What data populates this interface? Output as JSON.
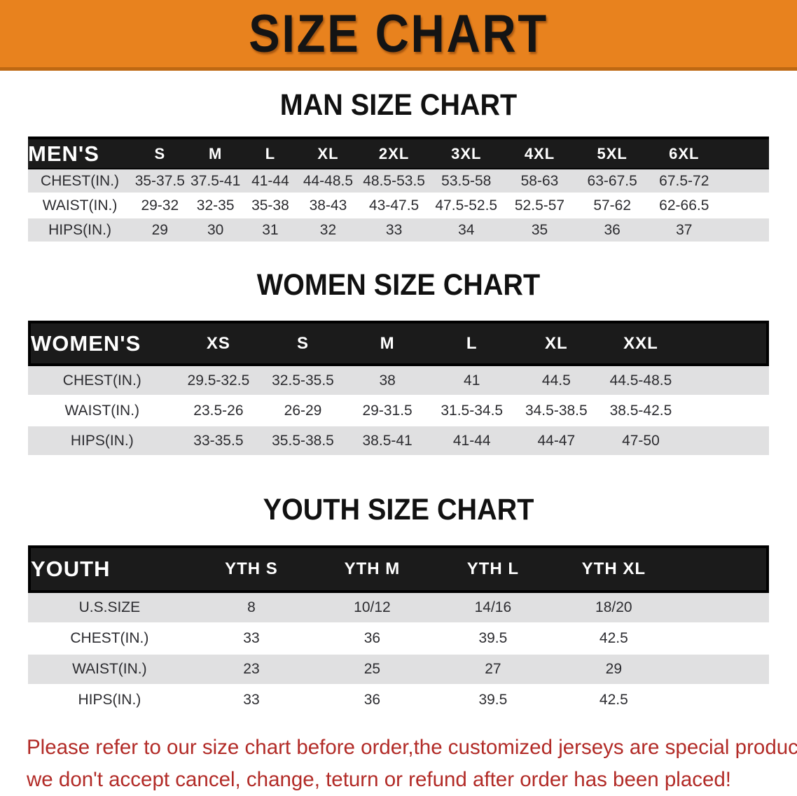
{
  "banner": {
    "title": "SIZE CHART",
    "bg_color": "#E8821E",
    "border_color": "#BE6812",
    "text_color": "#141414"
  },
  "sections": [
    {
      "heading": "MAN SIZE CHART",
      "table": {
        "label": "MEN'S",
        "columns": [
          "S",
          "M",
          "L",
          "XL",
          "2XL",
          "3XL",
          "4XL",
          "5XL",
          "6XL"
        ],
        "rows": [
          {
            "label": "CHEST(IN.)",
            "values": [
              "35-37.5",
              "37.5-41",
              "41-44",
              "44-48.5",
              "48.5-53.5",
              "53.5-58",
              "58-63",
              "63-67.5",
              "67.5-72"
            ]
          },
          {
            "label": "WAIST(IN.)",
            "values": [
              "29-32",
              "32-35",
              "35-38",
              "38-43",
              "43-47.5",
              "47.5-52.5",
              "52.5-57",
              "57-62",
              "62-66.5"
            ]
          },
          {
            "label": "HIPS(IN.)",
            "values": [
              "29",
              "30",
              "31",
              "32",
              "33",
              "34",
              "35",
              "36",
              "37"
            ]
          }
        ]
      }
    },
    {
      "heading": "WOMEN SIZE CHART",
      "table": {
        "label": "WOMEN'S",
        "columns": [
          "XS",
          "S",
          "M",
          "L",
          "XL",
          "XXL"
        ],
        "rows": [
          {
            "label": "CHEST(IN.)",
            "values": [
              "29.5-32.5",
              "32.5-35.5",
              "38",
              "41",
              "44.5",
              "44.5-48.5"
            ]
          },
          {
            "label": "WAIST(IN.)",
            "values": [
              "23.5-26",
              "26-29",
              "29-31.5",
              "31.5-34.5",
              "34.5-38.5",
              "38.5-42.5"
            ]
          },
          {
            "label": "HIPS(IN.)",
            "values": [
              "33-35.5",
              "35.5-38.5",
              "38.5-41",
              "41-44",
              "44-47",
              "47-50"
            ]
          }
        ]
      }
    },
    {
      "heading": "YOUTH SIZE CHART",
      "table": {
        "label": "YOUTH",
        "columns": [
          "YTH S",
          "YTH M",
          "YTH L",
          "YTH XL"
        ],
        "rows": [
          {
            "label": "U.S.SIZE",
            "values": [
              "8",
              "10/12",
              "14/16",
              "18/20"
            ]
          },
          {
            "label": "CHEST(IN.)",
            "values": [
              "33",
              "36",
              "39.5",
              "42.5"
            ]
          },
          {
            "label": "WAIST(IN.)",
            "values": [
              "23",
              "25",
              "27",
              "29"
            ]
          },
          {
            "label": "HIPS(IN.)",
            "values": [
              "33",
              "36",
              "39.5",
              "42.5"
            ]
          }
        ]
      }
    }
  ],
  "table_style": {
    "header_bg": "#1b1b1b",
    "header_text": "#ffffff",
    "row_shade": "#e0e0e1"
  },
  "disclaimer": {
    "line1": "Please refer to our size chart before order,the customized jerseys are special products,",
    "line2": "we don't accept cancel, change, teturn or refund after order has been placed!",
    "color": "#B22B27"
  }
}
